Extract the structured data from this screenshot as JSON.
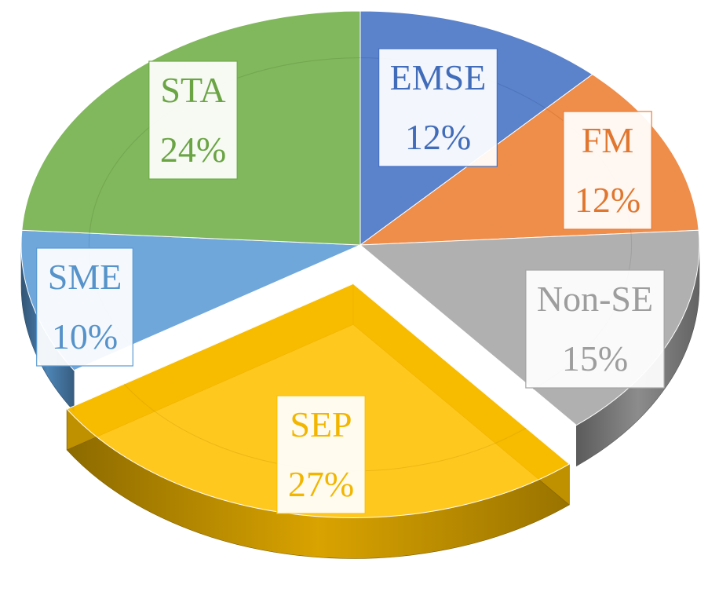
{
  "chart_data": {
    "type": "pie",
    "style": "3d-exploded",
    "title": "",
    "slices": [
      {
        "label": "EMSE",
        "value": 12,
        "display": "12%",
        "color": "#4472C4"
      },
      {
        "label": "FM",
        "value": 12,
        "display": "12%",
        "color": "#ED7D31"
      },
      {
        "label": "Non-SE",
        "value": 15,
        "display": "15%",
        "color": "#A5A5A5"
      },
      {
        "label": "SEP",
        "value": 27,
        "display": "27%",
        "color": "#FFC000"
      },
      {
        "label": "SME",
        "value": 10,
        "display": "10%",
        "color": "#5B9BD5"
      },
      {
        "label": "STA",
        "value": 24,
        "display": "24%",
        "color": "#70AD47"
      }
    ],
    "exploded": [
      "SEP"
    ],
    "legend": "none"
  }
}
